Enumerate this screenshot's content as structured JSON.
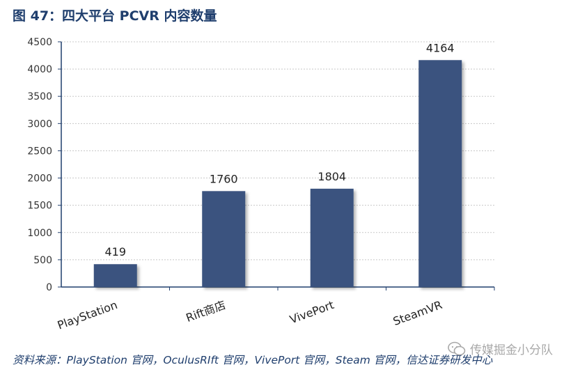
{
  "figure": {
    "title": "图 47：四大平台 PCVR 内容数量",
    "source": "资料来源：PlayStation 官网，OculusRIft 官网，VivePort 官网，Steam 官网，信达证券研发中心",
    "watermark": "传媒掘金小分队"
  },
  "colors": {
    "bar": "#3a527f",
    "title": "#1f3e6d",
    "axis": "#1f3e6d",
    "grid": "#c8c8c8"
  },
  "chart_data": {
    "type": "bar",
    "categories": [
      "PlayStation",
      "Rift商店",
      "VivePort",
      "SteamVR"
    ],
    "values": [
      419,
      1760,
      1804,
      4164
    ],
    "ylim": [
      0,
      4500
    ],
    "yticks": [
      0,
      500,
      1000,
      1500,
      2000,
      2500,
      3000,
      3500,
      4000,
      4500
    ],
    "grid": true,
    "data_labels": true,
    "xtick_rotation": -20
  }
}
